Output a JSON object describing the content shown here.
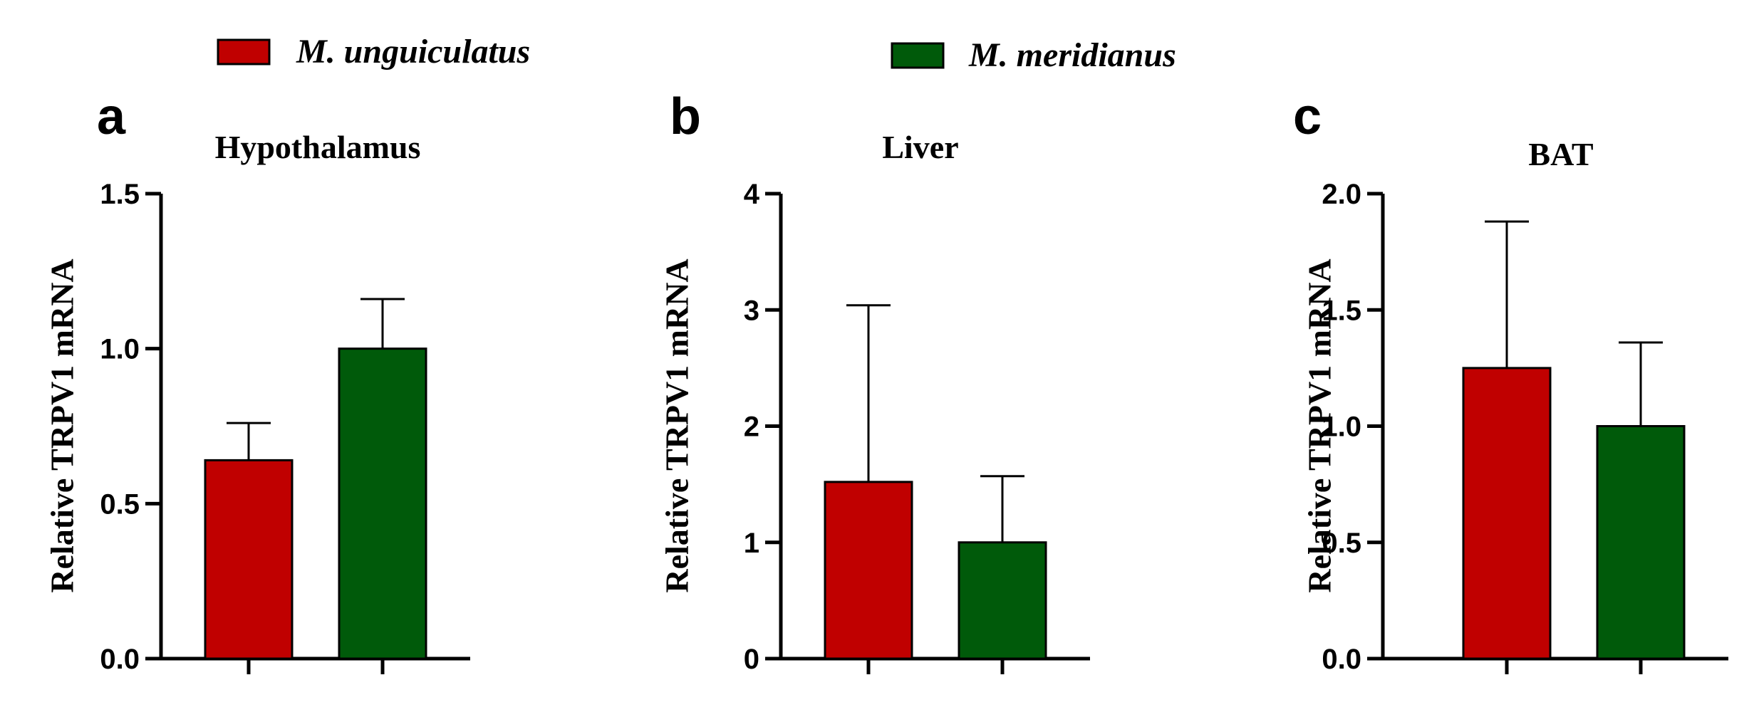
{
  "legend": [
    {
      "label": "M. unguiculatus",
      "color": "#c00000"
    },
    {
      "label": "M. meridianus",
      "color": "#005a0a"
    }
  ],
  "chart_data": [
    {
      "type": "bar",
      "panel": "a",
      "title": "Hypothalamus",
      "ylabel": "Relative TRPV1 mRNA",
      "ylim": [
        0,
        1.5
      ],
      "yticks": [
        "0.0",
        "0.5",
        "1.0",
        "1.5"
      ],
      "categories": [
        "M. unguiculatus",
        "M. meridianus"
      ],
      "values": [
        0.64,
        1.0
      ],
      "error_upper": [
        0.76,
        1.16
      ],
      "colors": [
        "#c00000",
        "#005a0a"
      ]
    },
    {
      "type": "bar",
      "panel": "b",
      "title": "Liver",
      "ylabel": "Relative TRPV1 mRNA",
      "ylim": [
        0,
        4
      ],
      "yticks": [
        "0",
        "1",
        "2",
        "3",
        "4"
      ],
      "categories": [
        "M. unguiculatus",
        "M. meridianus"
      ],
      "values": [
        1.52,
        1.0
      ],
      "error_upper": [
        3.04,
        1.57
      ],
      "colors": [
        "#c00000",
        "#005a0a"
      ]
    },
    {
      "type": "bar",
      "panel": "c",
      "title": "BAT",
      "ylabel": "Relative TRPV1 mRNA",
      "ylim": [
        0,
        2.0
      ],
      "yticks": [
        "0.0",
        "0.5",
        "1.0",
        "1.5",
        "2.0"
      ],
      "categories": [
        "M. unguiculatus",
        "M. meridianus"
      ],
      "values": [
        1.25,
        1.0
      ],
      "error_upper": [
        1.88,
        1.36
      ],
      "colors": [
        "#c00000",
        "#005a0a"
      ]
    }
  ]
}
